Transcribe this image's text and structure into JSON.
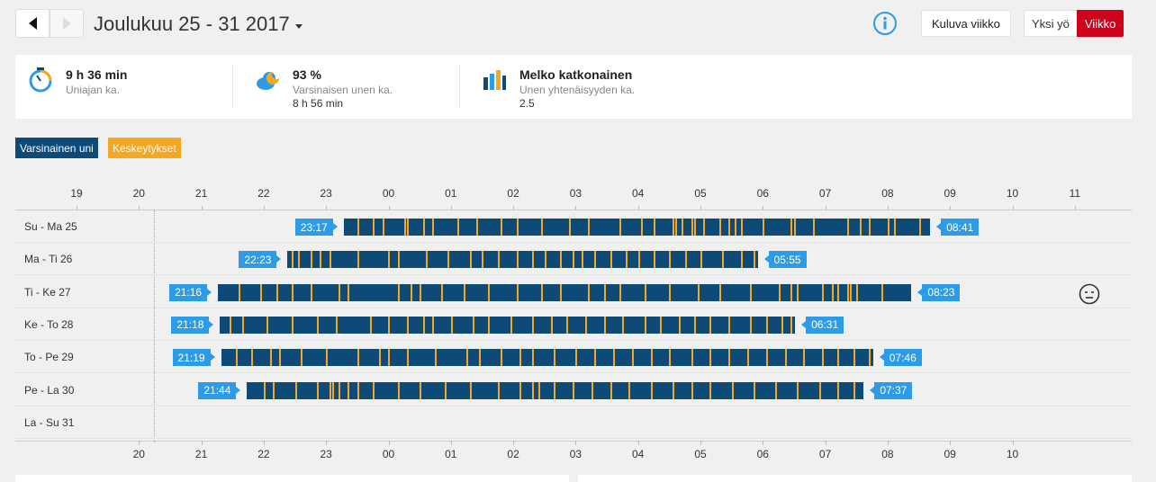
{
  "header": {
    "title": "Joulukuu 25 - 31 2017",
    "current_week_label": "Kuluva viikko",
    "view_night_label": "Yksi yö",
    "view_week_label": "Viikko"
  },
  "stats": [
    {
      "icon": "sleep-clock-icon",
      "value": "9 h 36 min",
      "label": "Uniajan ka.",
      "sub": ""
    },
    {
      "icon": "sleep-cloud-icon",
      "value": "93 %",
      "label": "Varsinaisen unen ka.",
      "sub": "8 h 56 min"
    },
    {
      "icon": "sleep-continuity-icon",
      "value": "Melko katkonainen",
      "label": "Unen yhtenäisyyden ka.",
      "sub": "2.5"
    }
  ],
  "legend": {
    "actual_sleep": "Varsinainen uni",
    "interruptions": "Keskeytykset"
  },
  "colors": {
    "actual_sleep": "#0d4a78",
    "interruptions": "#f5a623",
    "time_tag": "#2d9ce8",
    "accent": "#d0021b"
  },
  "top_axis": [
    "19",
    "20",
    "21",
    "22",
    "23",
    "00",
    "01",
    "02",
    "03",
    "04",
    "05",
    "06",
    "07",
    "08",
    "09",
    "10",
    "11"
  ],
  "bottom_axis": [
    "20",
    "21",
    "22",
    "23",
    "00",
    "01",
    "02",
    "03",
    "04",
    "05",
    "06",
    "07",
    "08",
    "09",
    "10"
  ],
  "rows": [
    {
      "label": "Su - Ma 25",
      "start": "23:17",
      "end": "08:41",
      "start_h": 23.283,
      "end_h": 32.683,
      "mood": false,
      "interruptions": [
        23.5,
        23.75,
        23.9,
        24.25,
        24.3,
        24.55,
        24.7,
        25.1,
        25.4,
        25.8,
        26.05,
        26.45,
        26.9,
        27.2,
        27.7,
        28.05,
        28.25,
        28.55,
        28.6,
        28.7,
        28.85,
        28.9,
        29.05,
        29.3,
        29.45,
        29.55,
        29.65,
        30.0,
        30.45,
        30.5,
        30.8,
        31.35,
        31.55,
        31.7,
        32.0,
        32.1,
        32.5
      ]
    },
    {
      "label": "Ma - Ti 26",
      "start": "22:23",
      "end": "05:55",
      "start_h": 22.383,
      "end_h": 29.917,
      "mood": false,
      "interruptions": [
        22.45,
        22.55,
        22.75,
        22.9,
        23.05,
        23.5,
        24.0,
        24.15,
        24.6,
        24.95,
        25.3,
        25.5,
        25.75,
        26.05,
        26.3,
        26.5,
        26.75,
        26.95,
        27.1,
        27.3,
        27.55,
        27.8,
        28.0,
        28.25,
        28.5,
        28.75,
        29.0,
        29.35,
        29.65,
        29.85
      ]
    },
    {
      "label": "Ti - Ke 27",
      "start": "21:16",
      "end": "08:23",
      "start_h": 21.267,
      "end_h": 32.383,
      "mood": true,
      "interruptions": [
        21.6,
        21.95,
        22.2,
        22.45,
        22.75,
        23.2,
        23.35,
        24.15,
        24.35,
        24.5,
        24.85,
        25.2,
        25.6,
        26.05,
        26.45,
        26.75,
        27.2,
        27.45,
        27.7,
        28.1,
        28.5,
        28.95,
        29.3,
        29.8,
        30.25,
        30.45,
        30.55,
        30.95,
        31.1,
        31.2,
        31.35,
        31.4,
        31.5,
        31.9
      ]
    },
    {
      "label": "Ke - To 28",
      "start": "21:18",
      "end": "06:31",
      "start_h": 21.3,
      "end_h": 30.517,
      "mood": false,
      "interruptions": [
        21.45,
        21.65,
        22.05,
        22.45,
        22.85,
        23.15,
        23.7,
        24.0,
        24.3,
        24.55,
        24.7,
        25.0,
        25.35,
        25.6,
        25.95,
        26.3,
        26.6,
        26.85,
        27.15,
        27.45,
        27.75,
        28.1,
        28.35,
        28.65,
        28.9,
        29.15,
        29.45,
        29.8,
        30.05,
        30.3,
        30.45
      ]
    },
    {
      "label": "To - Pe 29",
      "start": "21:19",
      "end": "07:46",
      "start_h": 21.317,
      "end_h": 31.767,
      "mood": false,
      "interruptions": [
        21.55,
        21.8,
        22.1,
        22.25,
        22.6,
        23.0,
        23.5,
        23.85,
        24.0,
        24.3,
        24.75,
        25.25,
        25.45,
        25.8,
        26.1,
        26.3,
        26.65,
        27.0,
        27.3,
        27.6,
        27.9,
        28.2,
        28.5,
        28.85,
        29.15,
        29.45,
        29.75,
        30.05,
        30.35,
        30.65,
        30.95,
        31.2,
        31.45,
        31.7
      ]
    },
    {
      "label": "Pe - La 30",
      "start": "21:44",
      "end": "07:37",
      "start_h": 21.733,
      "end_h": 31.617,
      "mood": false,
      "interruptions": [
        22.0,
        22.15,
        22.5,
        22.85,
        23.05,
        23.1,
        23.2,
        23.35,
        23.5,
        23.75,
        24.15,
        24.5,
        24.9,
        25.3,
        25.75,
        26.1,
        26.3,
        26.4,
        26.65,
        26.95,
        27.25,
        27.55,
        27.85,
        28.2,
        28.55,
        28.85,
        29.15,
        29.5,
        29.85,
        30.2,
        30.55,
        30.9,
        31.2,
        31.45
      ]
    },
    {
      "label": "La - Su 31",
      "start": "",
      "end": "",
      "mood": false,
      "interruptions": []
    }
  ]
}
